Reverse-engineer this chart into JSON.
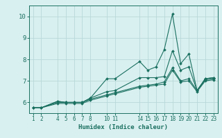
{
  "xlabel": "Humidex (Indice chaleur)",
  "bg_color": "#d9f0f0",
  "grid_color": "#b8d8d8",
  "line_color": "#1a7060",
  "tick_color": "#1a7060",
  "xlim": [
    0.5,
    23.5
  ],
  "ylim": [
    5.5,
    10.5
  ],
  "yticks": [
    6,
    7,
    8,
    9,
    10
  ],
  "xticks": [
    1,
    2,
    4,
    5,
    6,
    7,
    8,
    10,
    11,
    14,
    15,
    16,
    17,
    18,
    19,
    20,
    21,
    22,
    23
  ],
  "series": [
    {
      "x": [
        1,
        2,
        4,
        5,
        6,
        7,
        8,
        10,
        11,
        14,
        15,
        16,
        17,
        18,
        19,
        20,
        21,
        22,
        23
      ],
      "y": [
        5.75,
        5.75,
        6.05,
        6.0,
        6.0,
        6.0,
        6.2,
        7.1,
        7.1,
        7.9,
        7.5,
        7.65,
        8.45,
        10.1,
        7.8,
        8.25,
        6.55,
        7.1,
        7.15
      ]
    },
    {
      "x": [
        1,
        2,
        4,
        5,
        6,
        7,
        8,
        10,
        11,
        14,
        15,
        16,
        17,
        18,
        19,
        20,
        21,
        22,
        23
      ],
      "y": [
        5.75,
        5.75,
        6.05,
        6.0,
        6.0,
        6.0,
        6.2,
        6.5,
        6.55,
        7.15,
        7.15,
        7.15,
        7.2,
        8.4,
        7.5,
        7.65,
        6.55,
        7.1,
        7.15
      ]
    },
    {
      "x": [
        1,
        2,
        4,
        5,
        6,
        7,
        8,
        10,
        11,
        14,
        15,
        16,
        17,
        18,
        19,
        20,
        21,
        22,
        23
      ],
      "y": [
        5.75,
        5.75,
        6.0,
        6.0,
        6.0,
        6.0,
        6.15,
        6.35,
        6.45,
        6.75,
        6.8,
        6.85,
        6.95,
        7.6,
        7.0,
        7.1,
        6.55,
        7.05,
        7.1
      ]
    },
    {
      "x": [
        1,
        2,
        4,
        5,
        6,
        7,
        8,
        10,
        11,
        14,
        15,
        16,
        17,
        18,
        19,
        20,
        21,
        22,
        23
      ],
      "y": [
        5.75,
        5.75,
        5.95,
        5.95,
        5.95,
        5.95,
        6.1,
        6.3,
        6.4,
        6.7,
        6.75,
        6.8,
        6.85,
        7.5,
        6.95,
        7.0,
        6.5,
        7.0,
        7.05
      ]
    }
  ]
}
